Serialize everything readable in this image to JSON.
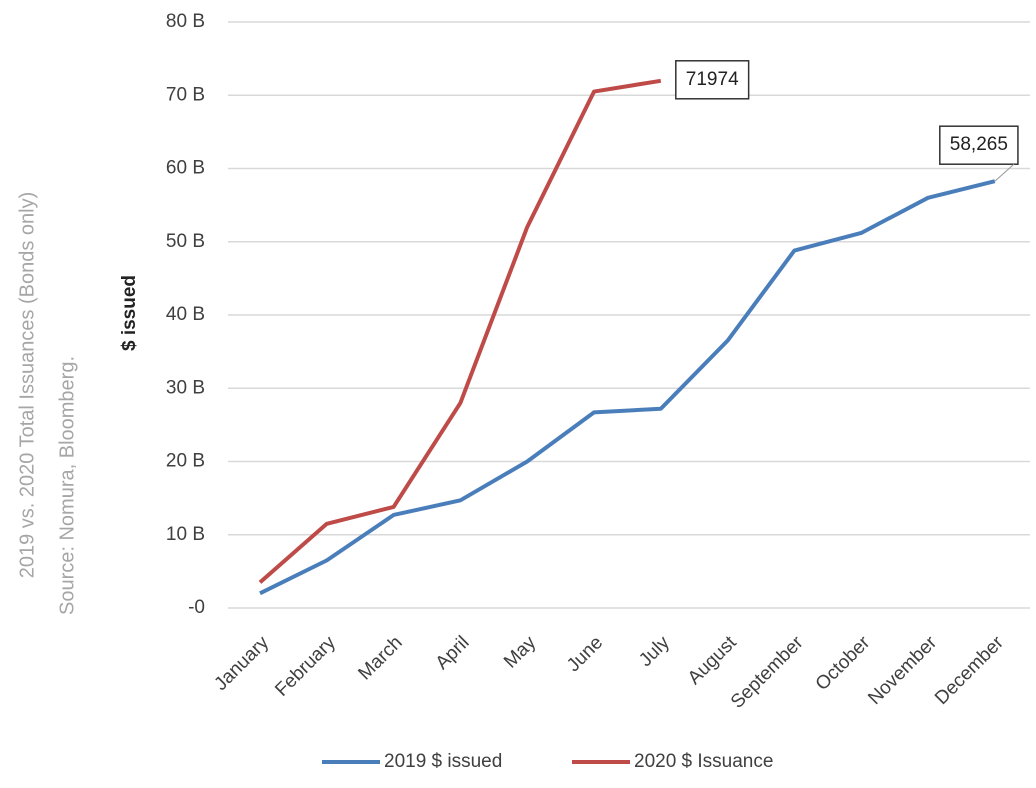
{
  "chart_data": {
    "type": "line",
    "annotations": [
      "2019 vs. 2020 Total Issuances (Bonds only)",
      "Source: Nomura, Bloomberg."
    ],
    "y_label": "$ issued",
    "categories": [
      "January",
      "February",
      "March",
      "April",
      "May",
      "June",
      "July",
      "August",
      "September",
      "October",
      "November",
      "December"
    ],
    "series": [
      {
        "name": "2019 $ issued",
        "color": "#4a7ebb",
        "values": [
          2,
          6.5,
          12.7,
          14.7,
          20,
          26.7,
          27.2,
          36.5,
          48.8,
          51.2,
          56,
          58.265
        ],
        "value_labels": [
          null,
          null,
          null,
          null,
          null,
          null,
          null,
          null,
          null,
          null,
          null,
          "58,265"
        ]
      },
      {
        "name": "2020 $ Issuance",
        "color": "#be4b48",
        "values": [
          3.5,
          11.5,
          13.8,
          28,
          52,
          70.5,
          71.974,
          null,
          null,
          null,
          null,
          null
        ],
        "value_labels": [
          null,
          null,
          null,
          null,
          null,
          null,
          "71974",
          null,
          null,
          null,
          null,
          null
        ]
      }
    ],
    "ylim": [
      0,
      80
    ],
    "yticks": [
      {
        "value": 0,
        "label": "-0"
      },
      {
        "value": 10,
        "label": "10 B"
      },
      {
        "value": 20,
        "label": "20 B"
      },
      {
        "value": 30,
        "label": "30 B"
      },
      {
        "value": 40,
        "label": "40 B"
      },
      {
        "value": 50,
        "label": "50 B"
      },
      {
        "value": 60,
        "label": "60 B"
      },
      {
        "value": 70,
        "label": "70 B"
      },
      {
        "value": 80,
        "label": "80 B"
      }
    ],
    "grid": true,
    "legend": "bottom"
  }
}
